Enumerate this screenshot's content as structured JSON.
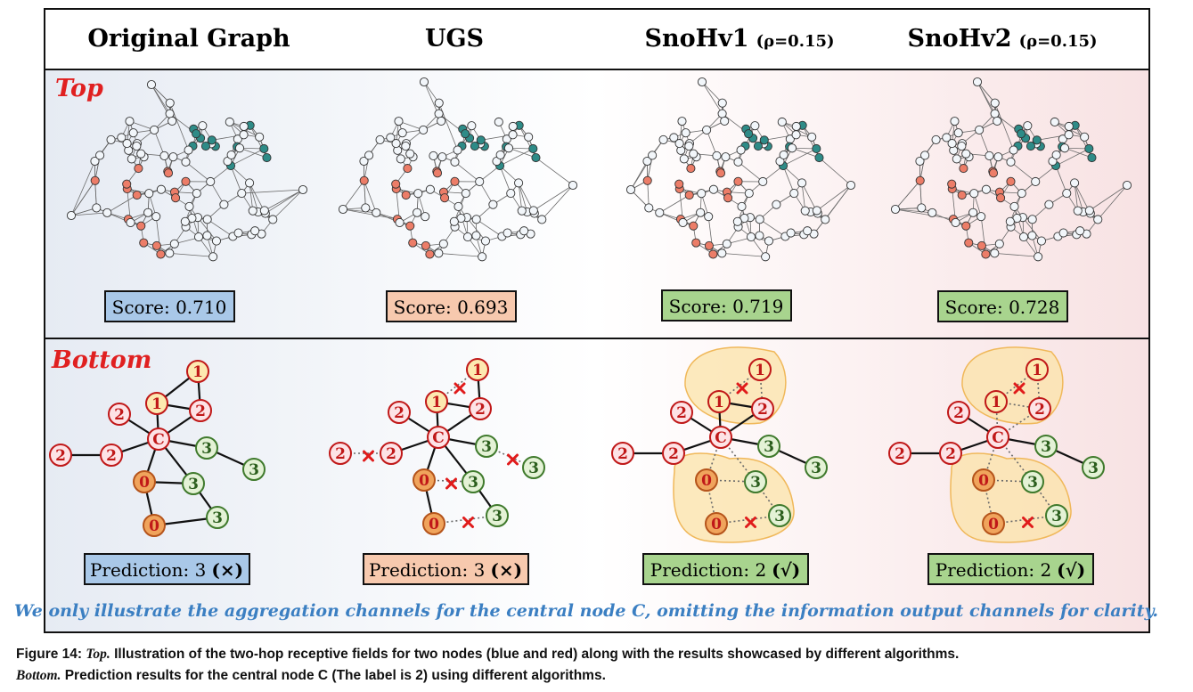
{
  "columns": [
    {
      "title": "Original Graph",
      "rho": ""
    },
    {
      "title": "UGS",
      "rho": ""
    },
    {
      "title": "SnoHv1",
      "rho": "(ρ=0.15)"
    },
    {
      "title": "SnoHv2",
      "rho": "(ρ=0.15)"
    }
  ],
  "rows": {
    "top": "Top",
    "bottom": "Bottom"
  },
  "scores": [
    "Score: 0.710",
    "Score: 0.693",
    "Score: 0.719",
    "Score: 0.728"
  ],
  "predictions": [
    {
      "label": "Prediction: 3",
      "mark": "(×)"
    },
    {
      "label": "Prediction: 3",
      "mark": "(×)"
    },
    {
      "label": "Prediction: 2",
      "mark": "(√)"
    },
    {
      "label": "Prediction: 2",
      "mark": "(√)"
    }
  ],
  "box_colors": [
    "#a9c8e8",
    "#f7c9ae",
    "#a8d48e",
    "#a8d48e"
  ],
  "node_colors": {
    "blue_graph": "#2e8b87",
    "red_graph": "#ec7d68",
    "plain": "#f2f6fa",
    "label0": "#f0a45c",
    "label1": "#fde9b0",
    "label2": "#fde3e6",
    "label3": "#e4f2d6",
    "label_c": "#fde3e6"
  },
  "node_labels": {
    "center": "C",
    "l0": "0",
    "l1": "1",
    "l2": "2",
    "l3": "3"
  },
  "note": "We only illustrate the aggregation channels for the central node C, omitting the information output channels for clarity.",
  "caption": {
    "line1_prefix": "Figure 14: ",
    "line1_italic": "Top.",
    "line1_rest": " Illustration of the two-hop receptive fields for two nodes (blue and red) along with the results showcased by different algorithms.",
    "line2_italic": "Bottom.",
    "line2_rest": " Prediction results for the central node C (The label is 2) using different algorithms."
  }
}
